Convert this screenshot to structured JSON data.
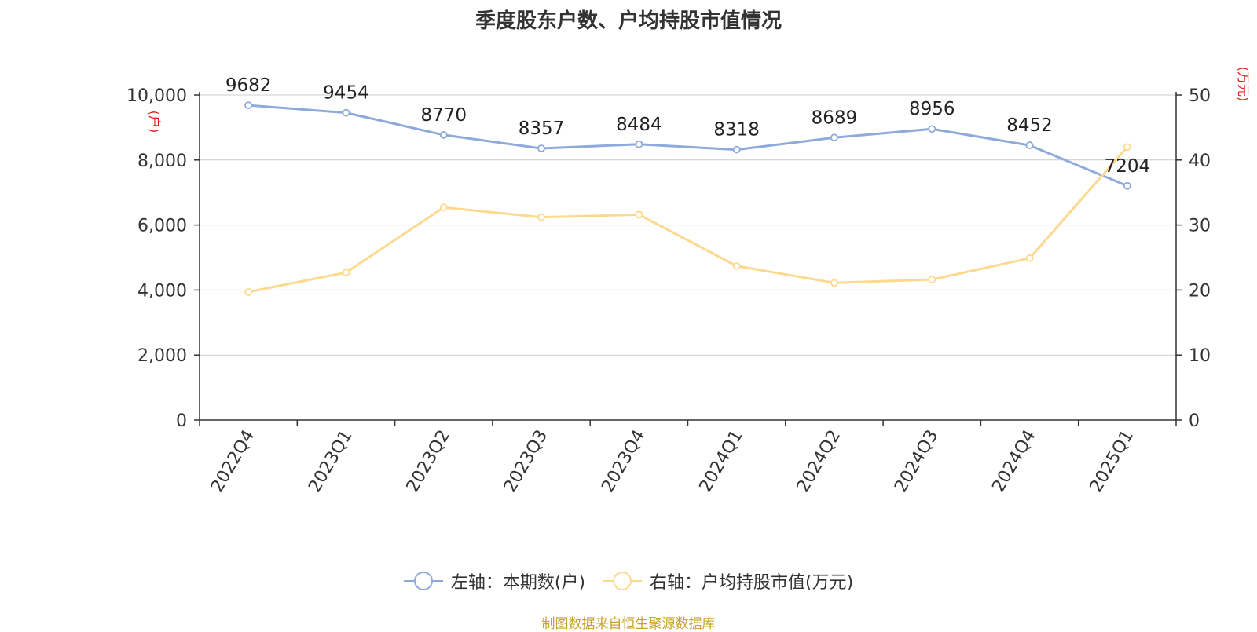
{
  "title": "季度股东户数、户均持股市值情况",
  "source": "制图数据来自恒生聚源数据库",
  "left_axis_unit": "(户)",
  "right_axis_unit": "(万元)",
  "colors": {
    "left_series": "#8eaadb",
    "right_series": "#fdd98f",
    "axis_unit": "#e0211b",
    "source": "#c9a227"
  },
  "chart_data": {
    "type": "line",
    "title": "季度股东户数、户均持股市值情况",
    "categories": [
      "2022Q4",
      "2023Q1",
      "2023Q2",
      "2023Q3",
      "2023Q4",
      "2024Q1",
      "2024Q2",
      "2024Q3",
      "2024Q4",
      "2025Q1"
    ],
    "y_left": {
      "unit": "(户)",
      "range": [
        0,
        10000
      ],
      "ticks": [
        "0",
        "2,000",
        "4,000",
        "6,000",
        "8,000",
        "10,000"
      ]
    },
    "y_right": {
      "unit": "(万元)",
      "range": [
        0,
        50
      ],
      "ticks": [
        "0",
        "10",
        "20",
        "30",
        "40",
        "50"
      ]
    },
    "grid": true,
    "legend_position": "bottom",
    "series": [
      {
        "name": "左轴：本期数(户)",
        "axis": "left",
        "values": [
          9682,
          9454,
          8770,
          8357,
          8484,
          8318,
          8689,
          8956,
          8452,
          7204
        ],
        "labels": [
          "9682",
          "9454",
          "8770",
          "8357",
          "8484",
          "8318",
          "8689",
          "8956",
          "8452",
          "7204"
        ]
      },
      {
        "name": "右轴：户均持股市值(万元)",
        "axis": "right",
        "values": [
          19.7,
          22.7,
          32.7,
          31.2,
          31.6,
          23.7,
          21.1,
          21.6,
          24.9,
          42.0
        ]
      }
    ]
  }
}
